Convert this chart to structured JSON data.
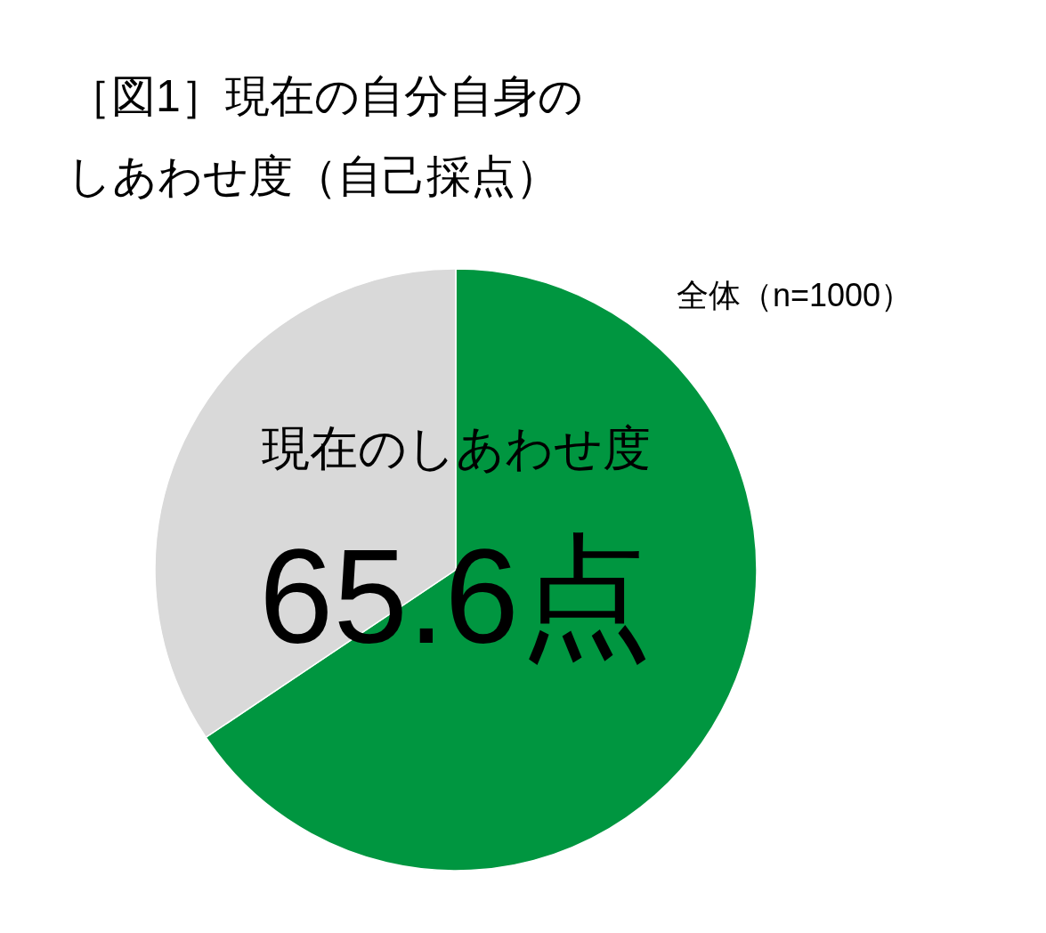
{
  "chart_data": {
    "type": "pie",
    "title": "［図1］現在の自分自身のしあわせ度（自己採点）",
    "subtitle": "全体（n=1000）",
    "annotations": [
      "現在のしあわせ度"
    ],
    "categories": [
      null,
      null
    ],
    "values": [
      65.6,
      34.4
    ],
    "colors": [
      "#009640",
      "#d9d9d9"
    ],
    "value_labels": [
      "65.6点",
      null
    ]
  }
}
